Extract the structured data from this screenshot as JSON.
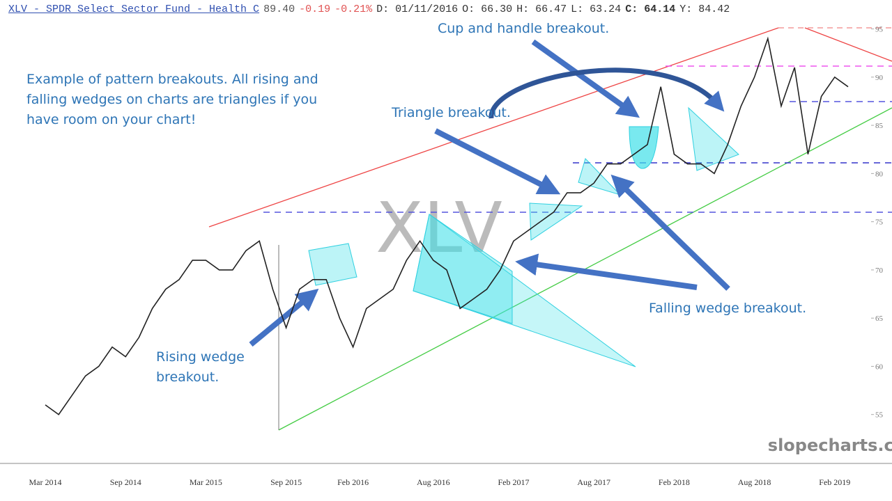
{
  "header": {
    "symbol": "XLV - SPDR Select Sector Fund - Health C",
    "last": "89.40",
    "change": "-0.19",
    "change_pct": "-0.21%",
    "date": "D: 01/11/2016",
    "open": "O: 66.30",
    "high": "H: 66.47",
    "low": "L: 63.24",
    "close_label": "C:",
    "close": "64.14",
    "year": "Y: 84.42"
  },
  "chart_data": {
    "type": "line",
    "watermark": "XLV",
    "credit": "slopecharts.com",
    "categories": [
      "Mar 2014",
      null,
      null,
      null,
      null,
      null,
      "Sep 2014",
      null,
      null,
      null,
      null,
      null,
      "Mar 2015",
      null,
      null,
      null,
      null,
      null,
      "Sep 2015",
      null,
      null,
      null,
      null,
      "Feb 2016",
      null,
      null,
      null,
      null,
      null,
      "Aug 2016",
      null,
      null,
      null,
      null,
      null,
      "Feb 2017",
      null,
      null,
      null,
      null,
      null,
      "Aug 2017",
      null,
      null,
      null,
      null,
      null,
      "Feb 2018",
      null,
      null,
      null,
      null,
      null,
      "Aug 2018",
      null,
      null,
      null,
      null,
      null,
      "Feb 2019",
      null
    ],
    "series": [
      {
        "name": "XLV",
        "color": "#222222",
        "values": [
          56,
          55,
          57,
          59,
          60,
          62,
          61,
          63,
          66,
          68,
          69,
          71,
          71,
          70,
          70,
          72,
          73,
          68,
          64,
          68,
          69,
          69,
          65,
          62,
          66,
          67,
          68,
          71,
          73,
          71,
          70,
          66,
          67,
          68,
          70,
          73,
          74,
          75,
          76,
          78,
          78,
          79,
          81,
          81,
          82,
          83,
          89,
          82,
          81,
          81,
          80,
          83,
          87,
          90,
          94,
          87,
          91,
          82,
          88,
          90,
          89
        ]
      }
    ],
    "ylim": [
      50,
      98
    ],
    "yticks": [
      55,
      60,
      65,
      70,
      75,
      80,
      85,
      90,
      95
    ],
    "grid": false,
    "annotations": [
      "Example of pattern breakouts. All rising and falling wedges on charts are triangles if you have room on your chart!",
      "Cup and handle breakout.",
      "Triangle breakout.",
      "Falling wedge breakout.",
      "Rising wedge breakout."
    ]
  }
}
